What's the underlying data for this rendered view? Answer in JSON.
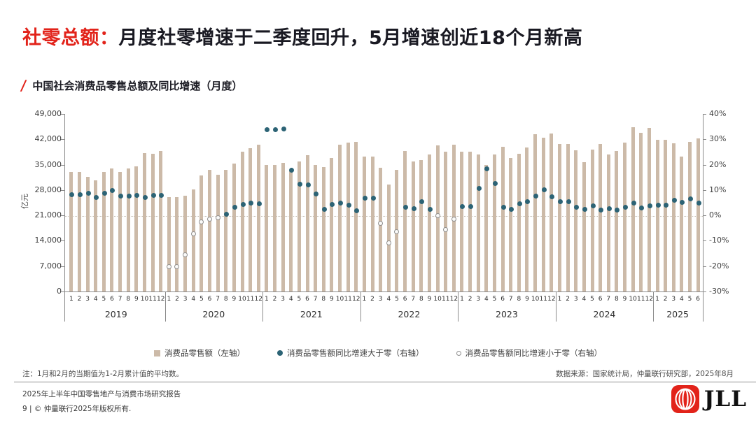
{
  "header": {
    "title_highlight": "社零总额：",
    "title_rest": "月度社零增速于二季度回升，5月增速创近18个月新高",
    "slash": "/",
    "subtitle": "中国社会消费品零售总额及同比增速（月度）"
  },
  "chart_data": {
    "type": "bar+scatter",
    "title": "中国社会消费品零售总额及同比增速（月度）",
    "left_axis": {
      "label": "亿元",
      "min": 0,
      "max": 49000,
      "tick_labels": [
        "49,000",
        "42,000",
        "35,000",
        "28,000",
        "21,000",
        "14,000",
        "7,000",
        "0"
      ]
    },
    "right_axis": {
      "min": -30,
      "max": 40,
      "tick_labels": [
        "40%",
        "30%",
        "20%",
        "10%",
        "0%",
        "-10%",
        "-20%",
        "-30%"
      ]
    },
    "grid": "dotted zero line at 0% (21,000 on left axis)",
    "years": [
      {
        "label": "2019",
        "months": [
          "1",
          "2",
          "3",
          "4",
          "5",
          "6",
          "7",
          "8",
          "9",
          "10",
          "11",
          "12"
        ],
        "sales": [
          33032,
          33032,
          31726,
          30586,
          32956,
          33878,
          33073,
          33896,
          34495,
          38104,
          38094,
          38777
        ],
        "growth_pct": [
          8.2,
          8.2,
          8.7,
          7.2,
          8.6,
          9.8,
          7.6,
          7.5,
          7.8,
          7.2,
          8.0,
          8.0
        ]
      },
      {
        "label": "2020",
        "months": [
          "1",
          "2",
          "3",
          "4",
          "5",
          "6",
          "7",
          "8",
          "9",
          "10",
          "11",
          "12"
        ],
        "sales": [
          26065,
          26065,
          26450,
          28178,
          31973,
          33526,
          32203,
          33571,
          35295,
          38576,
          39514,
          40566
        ],
        "growth_pct": [
          -20.5,
          -20.5,
          -15.8,
          -7.5,
          -2.8,
          -1.8,
          -1.1,
          0.5,
          3.3,
          4.3,
          5.0,
          4.6
        ]
      },
      {
        "label": "2021",
        "months": [
          "1",
          "2",
          "3",
          "4",
          "5",
          "6",
          "7",
          "8",
          "9",
          "10",
          "11",
          "12"
        ],
        "sales": [
          34869,
          34869,
          35484,
          33153,
          35945,
          37586,
          34925,
          34395,
          36833,
          40454,
          41043,
          41269
        ],
        "growth_pct": [
          33.8,
          33.8,
          34.2,
          17.7,
          12.4,
          12.1,
          8.5,
          2.5,
          4.4,
          4.9,
          3.9,
          1.7
        ]
      },
      {
        "label": "2022",
        "months": [
          "1",
          "2",
          "3",
          "4",
          "5",
          "6",
          "7",
          "8",
          "9",
          "10",
          "11",
          "12"
        ],
        "sales": [
          37213,
          37213,
          34233,
          29483,
          33547,
          38742,
          35870,
          36258,
          37745,
          40271,
          38615,
          40542
        ],
        "growth_pct": [
          6.7,
          6.7,
          -3.5,
          -11.1,
          -6.7,
          3.1,
          2.7,
          5.4,
          2.5,
          -0.5,
          -5.9,
          -1.8
        ]
      },
      {
        "label": "2023",
        "months": [
          "1",
          "2",
          "3",
          "4",
          "5",
          "6",
          "7",
          "8",
          "9",
          "10",
          "11",
          "12"
        ],
        "sales": [
          38534,
          38534,
          37855,
          34910,
          37803,
          39951,
          36761,
          37933,
          39826,
          43333,
          42505,
          43550
        ],
        "growth_pct": [
          3.5,
          3.5,
          10.6,
          18.4,
          12.7,
          3.1,
          2.5,
          4.6,
          5.5,
          7.6,
          10.1,
          7.4
        ]
      },
      {
        "label": "2024",
        "months": [
          "1",
          "2",
          "3",
          "4",
          "5",
          "6",
          "7",
          "8",
          "9",
          "10",
          "11",
          "12"
        ],
        "sales": [
          40654,
          40654,
          39020,
          35699,
          39211,
          40732,
          37757,
          38726,
          41112,
          45396,
          43763,
          45172
        ],
        "growth_pct": [
          5.5,
          5.5,
          3.1,
          2.3,
          3.7,
          2.0,
          2.7,
          2.1,
          3.2,
          4.8,
          3.0,
          3.7
        ]
      },
      {
        "label": "2025",
        "months": [
          "1",
          "2",
          "3",
          "4",
          "5",
          "6"
        ],
        "sales": [
          41866,
          41866,
          40940,
          37174,
          41326,
          42287
        ],
        "growth_pct": [
          4.0,
          4.0,
          5.9,
          5.1,
          6.4,
          4.8
        ]
      }
    ],
    "legend": [
      {
        "marker": "bar-swatch",
        "label": "消费品零售额（左轴）"
      },
      {
        "marker": "dot-filled",
        "label": "消费品零售额同比增速大于零（右轴）"
      },
      {
        "marker": "dot-open",
        "label": "消费品零售额同比增速小于零（右轴）"
      }
    ],
    "colors": {
      "bar": "#ccbaa8",
      "dot_positive": "#2c6375",
      "dot_negative_ring": "#8f8f8f",
      "accent_red": "#e2231a"
    }
  },
  "footer": {
    "note": "注：1月和2月的当期值为1-2月累计值的平均数。",
    "source": "数据来源：国家统计局，仲量联行研究部，2025年8月",
    "report_title": "2025年上半年中国零售地产与消费市场研究报告",
    "page_info": "9 | © 仲量联行2025年版权所有.",
    "logo_text": "JLL"
  }
}
